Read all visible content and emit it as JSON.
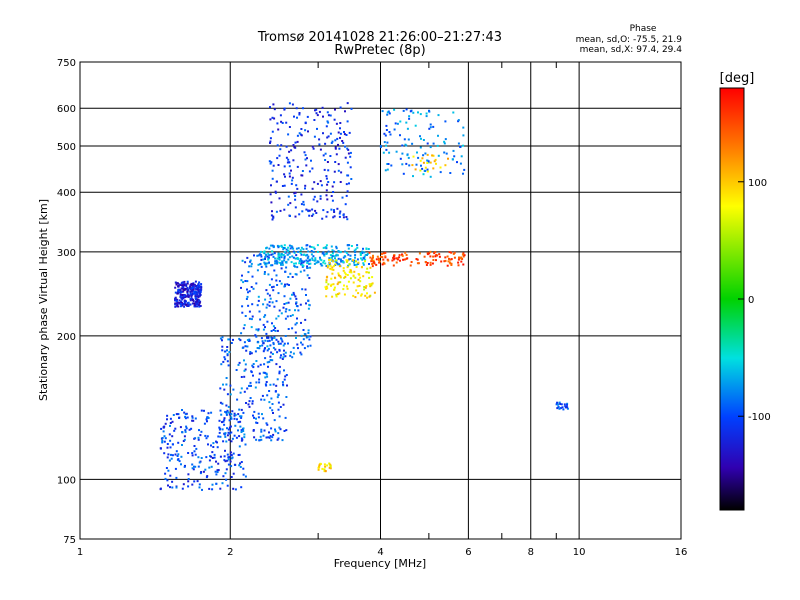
{
  "chart_data": {
    "type": "scatter",
    "title": "Tromsø 20141028 21:26:00–21:27:43",
    "subtitle": "RwPretec (8p)",
    "xlabel": "Frequency [MHz]",
    "ylabel": "Stationary phase Virtual Height [km]",
    "x_scale": "log",
    "y_scale": "log",
    "xlim": [
      1,
      16
    ],
    "ylim": [
      75,
      750
    ],
    "x_ticks": [
      1,
      2,
      4,
      6,
      8,
      10,
      16
    ],
    "x_minor_ticks": [
      3,
      5,
      7,
      9
    ],
    "y_ticks": [
      75,
      100,
      200,
      300,
      400,
      500,
      600,
      750
    ],
    "grid": true,
    "phase_stats": {
      "heading": "Phase",
      "line_o": "mean, sd,O: -75.5, 21.9",
      "line_x": "mean, sd,X:  97.4, 29.4"
    },
    "colorbar": {
      "label": "[deg]",
      "range": [
        -180,
        180
      ],
      "ticks": [
        100,
        0,
        -100
      ]
    },
    "clusters": [
      {
        "f": [
          1.55,
          1.75
        ],
        "h": [
          230,
          260
        ],
        "phase": -120,
        "density": "high",
        "note": "isolated patch near 1.6 MHz"
      },
      {
        "f": [
          1.45,
          2.15
        ],
        "h": [
          95,
          140
        ],
        "phase": -100,
        "density": "high"
      },
      {
        "f": [
          1.9,
          2.6
        ],
        "h": [
          120,
          200
        ],
        "phase": -95,
        "density": "high"
      },
      {
        "f": [
          2.1,
          2.9
        ],
        "h": [
          180,
          300
        ],
        "phase": -90,
        "density": "high"
      },
      {
        "f": [
          2.3,
          3.8
        ],
        "h": [
          280,
          310
        ],
        "phase": -70,
        "density": "high",
        "note": "F-layer trace"
      },
      {
        "f": [
          2.4,
          3.5
        ],
        "h": [
          350,
          620
        ],
        "phase": -110,
        "density": "high"
      },
      {
        "f": [
          3.1,
          3.9
        ],
        "h": [
          240,
          290
        ],
        "phase": 80,
        "density": "medium",
        "note": "yellow-green X-mode patch"
      },
      {
        "f": [
          3.8,
          5.9
        ],
        "h": [
          280,
          300
        ],
        "phase": 150,
        "density": "medium",
        "note": "red/orange X trace"
      },
      {
        "f": [
          4.0,
          5.9
        ],
        "h": [
          430,
          600
        ],
        "phase": -80,
        "density": "medium"
      },
      {
        "f": [
          4.4,
          5.5
        ],
        "h": [
          440,
          480
        ],
        "phase": 90,
        "density": "low"
      },
      {
        "f": [
          9.0,
          9.5
        ],
        "h": [
          140,
          145
        ],
        "phase": -100,
        "density": "low"
      },
      {
        "f": [
          3.0,
          3.2
        ],
        "h": [
          104,
          108
        ],
        "phase": 90,
        "density": "low"
      }
    ]
  }
}
